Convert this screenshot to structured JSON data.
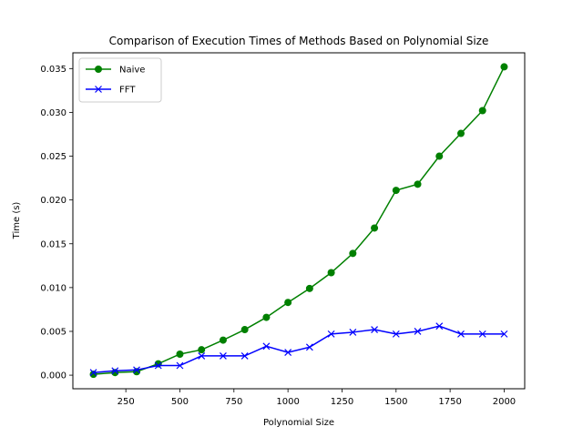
{
  "chart_data": {
    "type": "line",
    "title": "Comparison of Execution Times of Methods Based on Polynomial Size",
    "xlabel": "Polynomial Size",
    "ylabel": "Time (s)",
    "xlim": [
      5,
      2095
    ],
    "ylim": [
      -0.00155,
      0.0368
    ],
    "xticks": [
      250,
      500,
      750,
      1000,
      1250,
      1500,
      1750,
      2000
    ],
    "xtick_labels": [
      "250",
      "500",
      "750",
      "1000",
      "1250",
      "1500",
      "1750",
      "2000"
    ],
    "yticks": [
      0.0,
      0.005,
      0.01,
      0.015,
      0.02,
      0.025,
      0.03,
      0.035
    ],
    "ytick_labels": [
      "0.000",
      "0.005",
      "0.010",
      "0.015",
      "0.020",
      "0.025",
      "0.030",
      "0.035"
    ],
    "grid": false,
    "legend_position": "top-left",
    "x": [
      100,
      200,
      300,
      400,
      500,
      600,
      700,
      800,
      900,
      1000,
      1100,
      1200,
      1300,
      1400,
      1500,
      1600,
      1700,
      1800,
      1900,
      2000
    ],
    "series": [
      {
        "name": "Naive",
        "color": "#008000",
        "marker": "circle",
        "values": [
          0.0001,
          0.0003,
          0.0004,
          0.0013,
          0.0024,
          0.0029,
          0.004,
          0.0052,
          0.0066,
          0.0083,
          0.0099,
          0.0117,
          0.0139,
          0.0168,
          0.0211,
          0.0218,
          0.025,
          0.0276,
          0.0302,
          0.0352
        ]
      },
      {
        "name": "FFT",
        "color": "#0000ff",
        "marker": "x",
        "values": [
          0.0003,
          0.0005,
          0.0006,
          0.0011,
          0.0011,
          0.0022,
          0.0022,
          0.0022,
          0.0033,
          0.0026,
          0.0032,
          0.0047,
          0.0049,
          0.0052,
          0.0047,
          0.005,
          0.0056,
          0.0047,
          0.0047,
          0.0047
        ]
      }
    ]
  }
}
